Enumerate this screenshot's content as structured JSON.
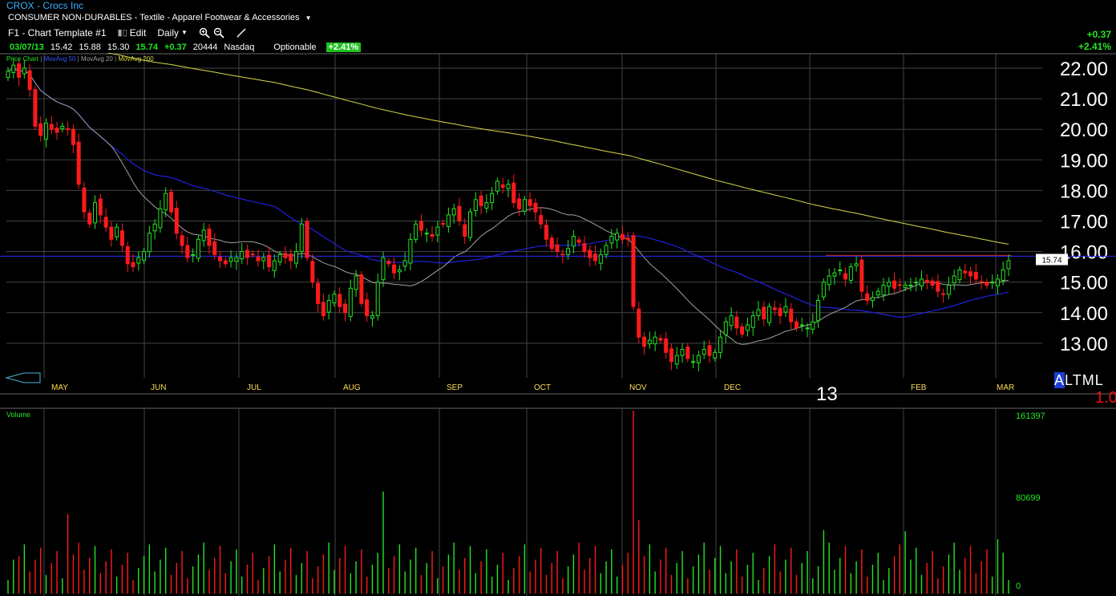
{
  "header": {
    "symbol_line": "CROX - Crocs Inc",
    "sector_line": "CONSUMER NON-DURABLES - Textile - Apparel Footwear & Accessories"
  },
  "toolbar": {
    "template": "F1 - Chart Template #1",
    "edit": "Edit",
    "interval": "Daily"
  },
  "quote": {
    "date": "03/07/13",
    "open": "15.42",
    "high": "15.88",
    "low": "15.30",
    "last": "15.74",
    "change": "+0.37",
    "volume": "20444",
    "exchange": "Nasdaq",
    "optionable": "Optionable",
    "pct_change": "+2.41%"
  },
  "summary": {
    "change": "+0.37",
    "pct": "+2.41%"
  },
  "legend": {
    "price": "Price Chart",
    "ma50": "MovAvg 50",
    "ma20": "MovAvg 20",
    "ma200": "MovAvg 200"
  },
  "colors": {
    "up": "#22e622",
    "down": "#ff1a1a",
    "ma50": "#2020e0",
    "ma20": "#a0a0a0",
    "ma200": "#d8d84a",
    "grid": "#444444",
    "hline": "#2b2bff",
    "axis_text": "#ffffff"
  },
  "bottom": {
    "alt": [
      "A",
      "L",
      "T",
      "M",
      "L"
    ],
    "year": "13",
    "scale": "1.0"
  },
  "volume_label": "Volume",
  "chart_data": [
    {
      "type": "candlestick",
      "title": "",
      "ylim": [
        12.0,
        22.5
      ],
      "y_ticks": [
        "22.00",
        "21.00",
        "20.00",
        "19.00",
        "18.00",
        "17.00",
        "16.00",
        "15.00",
        "14.00",
        "13.00"
      ],
      "months": [
        "MAY",
        "JUN",
        "JUL",
        "AUG",
        "SEP",
        "OCT",
        "NOV",
        "DEC",
        "FEB",
        "MAR"
      ],
      "last_price_tag": "15.74",
      "horizontal_line": 15.85,
      "close_path": [
        21.9,
        22.1,
        21.7,
        22.0,
        21.3,
        20.1,
        19.8,
        20.2,
        20.0,
        19.9,
        20.1,
        20.0,
        19.5,
        18.2,
        17.3,
        16.9,
        17.6,
        17.2,
        16.8,
        16.4,
        16.8,
        16.2,
        15.6,
        15.5,
        15.8,
        16.0,
        16.6,
        16.9,
        17.4,
        17.9,
        17.3,
        16.6,
        16.2,
        15.8,
        15.9,
        16.4,
        16.7,
        16.2,
        15.9,
        15.7,
        15.6,
        15.8,
        15.8,
        16.0,
        15.8,
        15.9,
        15.7,
        15.8,
        15.5,
        15.7,
        15.9,
        15.8,
        15.7,
        16.0,
        16.9,
        15.8,
        15.0,
        14.3,
        13.9,
        14.4,
        14.6,
        14.2,
        14.0,
        14.8,
        15.2,
        14.3,
        13.9,
        13.9,
        15.0,
        15.8,
        15.6,
        15.3,
        15.4,
        15.7,
        16.4,
        16.9,
        16.7,
        16.6,
        16.5,
        16.8,
        16.9,
        17.2,
        17.4,
        17.0,
        16.5,
        17.3,
        17.7,
        17.5,
        17.6,
        17.9,
        18.3,
        18.1,
        18.2,
        17.6,
        17.4,
        17.7,
        17.5,
        17.3,
        16.9,
        16.4,
        16.1,
        16.0,
        15.9,
        16.1,
        16.5,
        16.3,
        16.0,
        15.8,
        15.7,
        15.9,
        16.2,
        16.5,
        16.6,
        16.4,
        16.4,
        14.2,
        13.2,
        12.9,
        13.1,
        13.2,
        13.1,
        12.7,
        12.4,
        12.6,
        12.8,
        12.5,
        12.4,
        12.6,
        12.8,
        12.6,
        12.7,
        13.2,
        13.7,
        13.9,
        13.5,
        13.3,
        13.6,
        13.9,
        14.1,
        13.8,
        14.2,
        14.1,
        13.9,
        14.2,
        13.7,
        13.5,
        13.6,
        13.5,
        13.7,
        14.4,
        15.0,
        15.2,
        15.3,
        15.4,
        15.1,
        15.5,
        15.6,
        14.7,
        14.4,
        14.5,
        14.7,
        14.9,
        15.0,
        14.8,
        14.9,
        14.9,
        14.9,
        15.0,
        15.1,
        15.0,
        14.9,
        14.7,
        14.6,
        14.9,
        15.2,
        15.4,
        15.3,
        15.2,
        15.1,
        15.0,
        14.9,
        15.0,
        15.1,
        15.4,
        15.7
      ]
    },
    {
      "type": "bar",
      "title": "Volume",
      "y_ticks": [
        "161397",
        "80699",
        "0"
      ],
      "ylim": [
        0,
        161397
      ]
    }
  ]
}
